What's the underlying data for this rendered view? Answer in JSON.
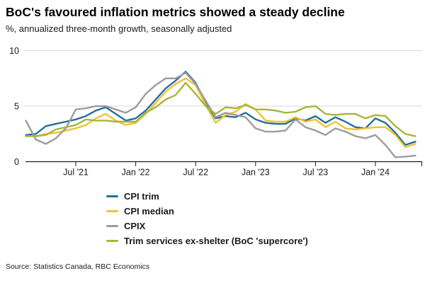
{
  "header": {
    "title": "BoC's favoured inflation metrics showed a steady decline",
    "subtitle": "%, annualized three-month growth, seasonally adjusted"
  },
  "source": "Source: Statistics Canada, RBC Economics",
  "colors": {
    "cpi_trim": "#20709f",
    "cpi_median": "#f2c230",
    "cpix": "#9c9c9c",
    "supercore": "#a8b53a",
    "gridline": "#d9d9d9",
    "axis": "#1a1a1a"
  },
  "chart_data": {
    "type": "line",
    "title": "BoC's favoured inflation metrics showed a steady decline",
    "subtitle": "%, annualized three-month growth, seasonally adjusted",
    "xlabel": "",
    "ylabel": "%",
    "ylim": [
      0,
      10
    ],
    "yticks": [
      0,
      5,
      10
    ],
    "grid": "horizontal",
    "legend_position": "bottom-left",
    "x": [
      "Feb '21",
      "Mar '21",
      "Apr '21",
      "May '21",
      "Jun '21",
      "Jul '21",
      "Aug '21",
      "Sep '21",
      "Oct '21",
      "Nov '21",
      "Dec '21",
      "Jan '22",
      "Feb '22",
      "Mar '22",
      "Apr '22",
      "May '22",
      "Jun '22",
      "Jul '22",
      "Aug '22",
      "Sep '22",
      "Oct '22",
      "Nov '22",
      "Dec '22",
      "Jan '23",
      "Feb '23",
      "Mar '23",
      "Apr '23",
      "May '23",
      "Jun '23",
      "Jul '23",
      "Aug '23",
      "Sep '23",
      "Oct '23",
      "Nov '23",
      "Dec '23",
      "Jan '24",
      "Feb '24",
      "Mar '24",
      "Apr '24",
      "May '24"
    ],
    "x_tick_labels": [
      "Jul '21",
      "Jan '22",
      "Jul '22",
      "Jan '23",
      "Jul '23",
      "Jan '24"
    ],
    "x_tick_indices": [
      5,
      11,
      17,
      23,
      29,
      35
    ],
    "series": [
      {
        "name": "CPI trim",
        "color": "#20709f",
        "values": [
          2.4,
          2.5,
          3.2,
          3.4,
          3.6,
          3.8,
          4.1,
          4.6,
          4.9,
          4.3,
          3.7,
          3.9,
          4.6,
          5.6,
          6.6,
          7.3,
          8.1,
          7.1,
          5.3,
          3.9,
          4.1,
          4.0,
          4.4,
          3.8,
          3.5,
          3.4,
          3.4,
          3.9,
          3.7,
          4.1,
          3.5,
          4.0,
          3.6,
          3.1,
          3.0,
          3.9,
          3.5,
          2.6,
          1.5,
          1.8
        ]
      },
      {
        "name": "CPI median",
        "color": "#f2c230",
        "values": [
          2.3,
          2.3,
          2.5,
          2.6,
          2.8,
          3.0,
          3.3,
          3.9,
          4.3,
          3.7,
          3.3,
          3.5,
          4.3,
          5.3,
          6.3,
          7.0,
          7.5,
          6.9,
          5.1,
          3.5,
          4.2,
          4.5,
          5.2,
          4.7,
          3.7,
          3.6,
          3.6,
          4.0,
          3.6,
          3.8,
          3.1,
          3.6,
          3.0,
          2.9,
          3.0,
          3.1,
          3.1,
          2.4,
          1.3,
          1.6
        ]
      },
      {
        "name": "CPIX",
        "color": "#9c9c9c",
        "values": [
          3.7,
          2.0,
          1.6,
          2.1,
          3.0,
          4.7,
          4.8,
          5.0,
          5.0,
          4.7,
          4.4,
          4.9,
          6.1,
          6.9,
          7.5,
          7.5,
          8.0,
          7.0,
          5.5,
          4.0,
          4.4,
          4.2,
          4.0,
          3.0,
          2.7,
          2.7,
          2.8,
          3.8,
          3.1,
          2.8,
          2.4,
          3.0,
          2.7,
          2.3,
          2.1,
          2.4,
          1.5,
          0.4,
          0.45,
          0.55
        ]
      },
      {
        "name": "Trim services ex-shelter (BoC 'supercore')",
        "color": "#a8b53a",
        "values": [
          2.3,
          2.3,
          2.4,
          2.9,
          3.1,
          3.3,
          3.8,
          3.7,
          3.7,
          3.6,
          3.6,
          3.6,
          4.4,
          4.9,
          5.6,
          6.0,
          7.1,
          6.1,
          5.0,
          4.3,
          4.9,
          4.8,
          5.1,
          4.7,
          4.7,
          4.6,
          4.4,
          4.5,
          4.9,
          5.0,
          4.3,
          4.2,
          4.3,
          4.3,
          3.9,
          4.2,
          4.1,
          3.2,
          2.5,
          2.3
        ]
      }
    ]
  }
}
